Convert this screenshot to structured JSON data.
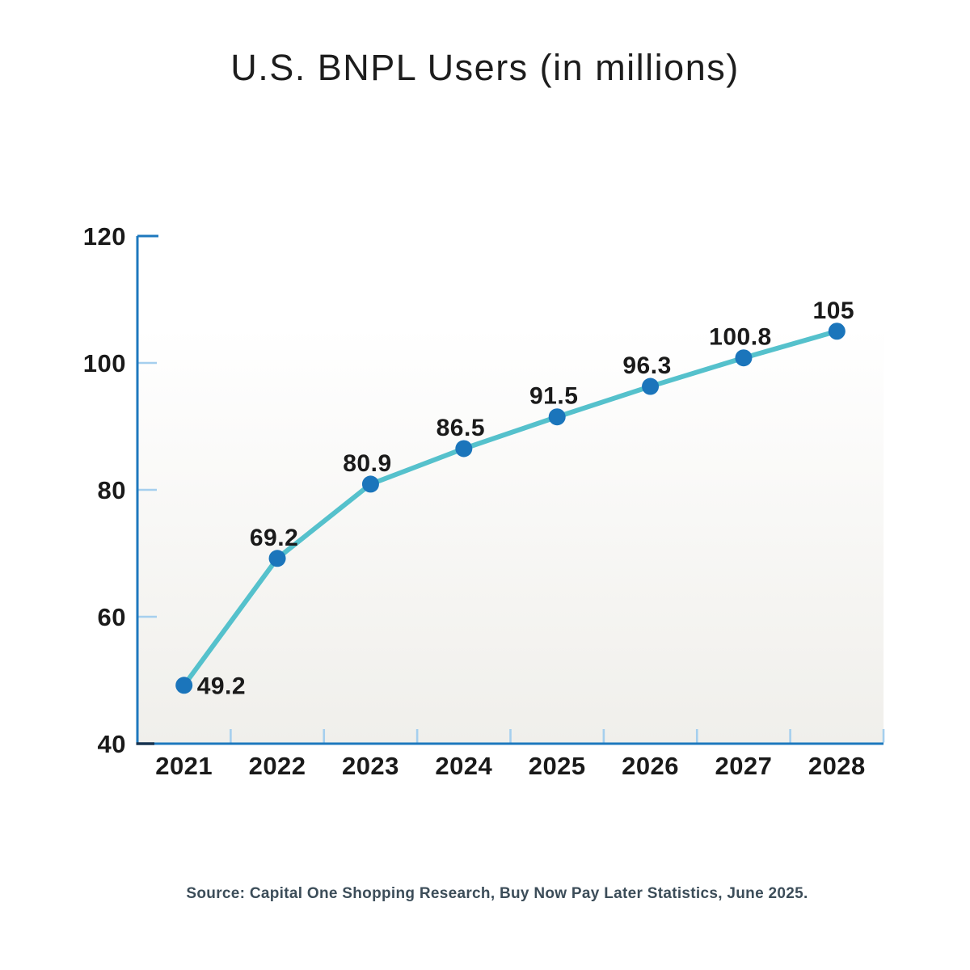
{
  "chart_data": {
    "type": "line",
    "title": "U.S. BNPL Users (in millions)",
    "categories": [
      "2021",
      "2022",
      "2023",
      "2024",
      "2025",
      "2026",
      "2027",
      "2028"
    ],
    "series": [
      {
        "name": "U.S. BNPL users (millions)",
        "values": [
          49.2,
          69.2,
          80.9,
          86.5,
          91.5,
          96.3,
          100.8,
          105
        ]
      }
    ],
    "point_labels": [
      "49.2",
      "69.2",
      "80.9",
      "86.5",
      "91.5",
      "96.3",
      "100.8",
      "105"
    ],
    "y_ticks": [
      40,
      60,
      80,
      100,
      120
    ],
    "ylim": [
      40,
      120
    ],
    "xlabel": "",
    "ylabel": "",
    "grid": false,
    "legend": "none"
  },
  "source_note": "Source: Capital One Shopping Research, Buy Now Pay Later Statistics, June 2025.",
  "colors": {
    "line": "#55c1cc",
    "point": "#1b75bb",
    "axis": "#1d78be",
    "tick": "#a5cfee",
    "corner_accent": "#16324f",
    "label_text": "#1a1a1a",
    "title_text": "#1d1d1d",
    "source_text": "#3c4d59",
    "plot_bg_top": "#ffffff",
    "plot_bg_bottom": "#f0efeb"
  }
}
